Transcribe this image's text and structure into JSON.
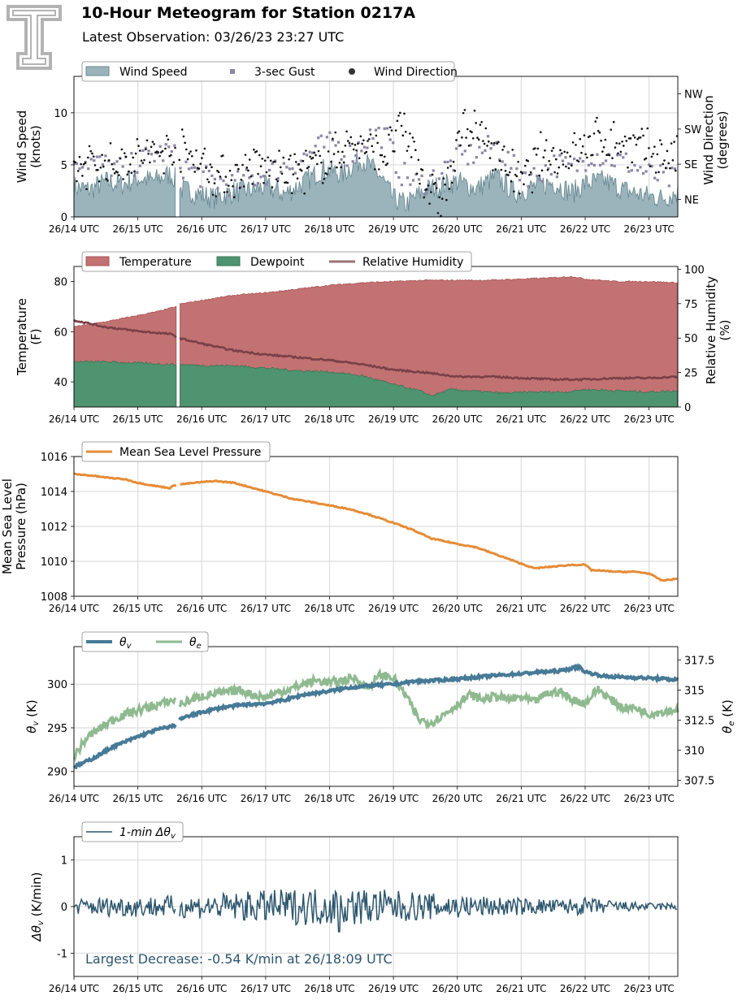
{
  "title": "10-Hour Meteogram for Station 0217A",
  "subtitle": "Latest Observation: 03/26/23 23:27 UTC",
  "colors": {
    "wind_speed": "#9bb4bc",
    "wind_speed_edge": "#6a8a94",
    "gust": "#8c84a4",
    "wind_dir": "#111111",
    "temperature": "#c27272",
    "dewpoint": "#4f9470",
    "rh": "#7a4048",
    "pressure": "#e58c36",
    "theta_v": "#467a96",
    "theta_e": "#8fba90",
    "dtheta": "#2c566e",
    "grid": "#dddddd",
    "logo": "#b3b3b3"
  },
  "icons": {
    "logo": "double-t-logo-icon"
  },
  "x_ticks": [
    "26/14 UTC",
    "26/15 UTC",
    "26/16 UTC",
    "26/17 UTC",
    "26/18 UTC",
    "26/19 UTC",
    "26/20 UTC",
    "26/21 UTC",
    "26/22 UTC",
    "26/23 UTC"
  ],
  "chart_data": [
    {
      "type": "area",
      "id": "wind",
      "ylabel": "Wind Speed\n(knots)",
      "ylabel2": "Wind Direction\n(degrees)",
      "ylim": [
        0,
        13.5
      ],
      "yticks": [
        0,
        5,
        10
      ],
      "y2lim": [
        0,
        360
      ],
      "y2ticks": [
        {
          "label": "NE",
          "value": 45
        },
        {
          "label": "SE",
          "value": 135
        },
        {
          "label": "SW",
          "value": 225
        },
        {
          "label": "NW",
          "value": 315
        }
      ],
      "xlim": [
        14.0,
        23.45
      ],
      "grid": true,
      "legend": "top-left",
      "gap": [
        15.6,
        15.65
      ],
      "series": [
        {
          "name": "Wind Speed",
          "kind": "area",
          "x": [
            14.0,
            14.25,
            14.5,
            14.75,
            15.0,
            15.25,
            15.5,
            15.6,
            15.65,
            15.9,
            16.2,
            16.5,
            16.8,
            17.0,
            17.3,
            17.6,
            17.9,
            18.2,
            18.5,
            18.8,
            19.0,
            19.2,
            19.5,
            19.8,
            20.0,
            20.3,
            20.6,
            20.9,
            21.2,
            21.5,
            21.8,
            22.0,
            22.3,
            22.6,
            22.9,
            23.2,
            23.45
          ],
          "values": [
            2.9,
            2.6,
            3.4,
            3.1,
            3.7,
            3.5,
            4.1,
            3.6,
            2.7,
            2.3,
            1.8,
            2.4,
            2.6,
            2.9,
            2.2,
            3.3,
            4.6,
            4.1,
            5.6,
            3.9,
            1.7,
            1.2,
            2.6,
            3.1,
            3.4,
            2.7,
            3.9,
            2.3,
            2.9,
            3.3,
            2.3,
            3.2,
            3.5,
            2.6,
            2.1,
            1.8,
            2.3
          ]
        },
        {
          "name": "3-sec Gust",
          "kind": "squares",
          "x": [
            14.05,
            14.4,
            14.8,
            15.2,
            15.5,
            15.7,
            16.1,
            16.5,
            16.9,
            17.2,
            17.5,
            17.8,
            18.1,
            18.3,
            18.7,
            18.9,
            19.1,
            19.4,
            19.7,
            20.0,
            20.3,
            20.6,
            20.9,
            21.2,
            21.5,
            21.8,
            22.1,
            22.4,
            22.7,
            23.0,
            23.3
          ],
          "values": [
            5.6,
            5.1,
            4.6,
            5.9,
            6.3,
            4.9,
            3.6,
            3.1,
            3.9,
            4.7,
            5.3,
            6.6,
            7.1,
            5.9,
            8.1,
            7.6,
            4.3,
            3.1,
            4.1,
            5.6,
            6.1,
            6.9,
            4.6,
            3.9,
            5.1,
            4.6,
            6.1,
            5.6,
            5.1,
            4.1,
            3.6
          ]
        },
        {
          "name": "Wind Direction",
          "kind": "dots",
          "x": [
            14.0,
            14.3,
            14.6,
            14.9,
            15.2,
            15.5,
            15.75,
            16.0,
            16.3,
            16.6,
            16.9,
            17.1,
            17.4,
            17.7,
            18.0,
            18.3,
            18.6,
            18.9,
            19.1,
            19.3,
            19.5,
            19.7,
            19.9,
            20.1,
            20.4,
            20.7,
            21.0,
            21.3,
            21.6,
            21.9,
            22.2,
            22.5,
            22.8,
            23.1,
            23.4
          ],
          "values": [
            120,
            140,
            130,
            150,
            160,
            170,
            165,
            140,
            100,
            110,
            130,
            120,
            115,
            125,
            145,
            190,
            175,
            160,
            230,
            180,
            90,
            40,
            100,
            240,
            200,
            150,
            80,
            160,
            150,
            170,
            200,
            190,
            180,
            160,
            150
          ]
        }
      ]
    },
    {
      "type": "area",
      "id": "thermo",
      "ylabel": "Temperature\n(F)",
      "ylabel2": "Relative Humidity\n(%)",
      "ylim": [
        30,
        86
      ],
      "yticks": [
        40,
        60,
        80
      ],
      "y2lim": [
        0,
        102
      ],
      "y2ticks": [
        0,
        25,
        50,
        75,
        100
      ],
      "xlim": [
        14.0,
        23.45
      ],
      "grid": false,
      "legend": "top-left",
      "gap": [
        15.6,
        15.65
      ],
      "series": [
        {
          "name": "Temperature",
          "kind": "area",
          "x": [
            14.0,
            14.5,
            15.0,
            15.3,
            15.6,
            15.65,
            16.0,
            16.5,
            17.0,
            17.5,
            18.0,
            18.5,
            19.0,
            19.5,
            20.0,
            20.5,
            21.0,
            21.5,
            21.8,
            22.0,
            22.5,
            23.0,
            23.45
          ],
          "values": [
            62,
            64,
            66.5,
            68,
            70,
            71,
            72.5,
            74.5,
            75.5,
            77,
            78.5,
            79.5,
            80,
            80.5,
            80.5,
            80.5,
            81,
            81.5,
            82,
            81,
            80,
            80,
            79.5
          ]
        },
        {
          "name": "Dewpoint",
          "kind": "area",
          "x": [
            14.0,
            14.5,
            15.0,
            15.5,
            15.6,
            15.65,
            16.0,
            16.5,
            17.0,
            17.5,
            18.0,
            18.5,
            19.0,
            19.4,
            19.6,
            19.9,
            20.2,
            20.7,
            21.2,
            21.7,
            22.0,
            22.5,
            23.0,
            23.45
          ],
          "values": [
            48,
            48,
            47.5,
            47,
            47,
            47,
            46.5,
            46.5,
            45.5,
            44.5,
            44,
            42.5,
            39,
            36.5,
            34.5,
            37,
            36.5,
            35.5,
            36,
            36,
            37,
            36.5,
            36,
            36.5
          ]
        },
        {
          "name": "Relative Humidity",
          "kind": "line",
          "x": [
            14.0,
            14.5,
            15.0,
            15.5,
            15.6,
            15.65,
            16.0,
            16.5,
            17.0,
            17.5,
            18.0,
            18.5,
            19.0,
            19.5,
            20.0,
            20.5,
            21.0,
            21.5,
            22.0,
            22.5,
            23.0,
            23.45
          ],
          "values": [
            63,
            58,
            55,
            53,
            51,
            50,
            46,
            41,
            38,
            36,
            34,
            31,
            27,
            25,
            22,
            22,
            21,
            20,
            20,
            21,
            21,
            22
          ]
        }
      ]
    },
    {
      "type": "line",
      "id": "pressure",
      "ylabel": "Mean Sea Level\nPressure (hPa)",
      "ylim": [
        1008,
        1016
      ],
      "yticks": [
        1008,
        1010,
        1012,
        1014,
        1016
      ],
      "xlim": [
        14.0,
        23.45
      ],
      "grid": true,
      "legend": "top-left",
      "gap": [
        15.6,
        15.65
      ],
      "series": [
        {
          "name": "Mean Sea Level Pressure",
          "x": [
            14.0,
            14.3,
            14.5,
            14.8,
            15.0,
            15.3,
            15.5,
            15.6,
            15.65,
            15.9,
            16.2,
            16.5,
            16.8,
            17.1,
            17.4,
            17.7,
            18.0,
            18.3,
            18.6,
            19.0,
            19.3,
            19.6,
            20.0,
            20.3,
            20.6,
            20.9,
            21.2,
            21.5,
            21.8,
            22.0,
            22.1,
            22.5,
            22.8,
            23.0,
            23.2,
            23.45
          ],
          "values": [
            1015.0,
            1014.9,
            1014.8,
            1014.7,
            1014.5,
            1014.3,
            1014.2,
            1014.4,
            1014.4,
            1014.5,
            1014.6,
            1014.5,
            1014.2,
            1013.9,
            1013.6,
            1013.4,
            1013.2,
            1013.0,
            1012.7,
            1012.2,
            1011.8,
            1011.3,
            1011.0,
            1010.8,
            1010.4,
            1010.0,
            1009.6,
            1009.7,
            1009.8,
            1009.8,
            1009.5,
            1009.4,
            1009.4,
            1009.3,
            1008.9,
            1009.0
          ]
        }
      ]
    },
    {
      "type": "line",
      "id": "theta",
      "ylabel": "θv (K)",
      "ylabel2": "θe (K)",
      "ylim": [
        288.3,
        304.3
      ],
      "yticks": [
        290,
        295,
        300
      ],
      "y2lim": [
        307.0,
        318.6
      ],
      "y2ticks": [
        307.5,
        310.0,
        312.5,
        315.0,
        317.5
      ],
      "xlim": [
        14.0,
        23.45
      ],
      "grid": true,
      "legend": "top-left",
      "gap": [
        15.6,
        15.65
      ],
      "series": [
        {
          "name": "θv",
          "axis": "left",
          "x": [
            14.0,
            14.3,
            14.6,
            15.0,
            15.3,
            15.6,
            15.65,
            16.0,
            16.3,
            16.6,
            17.0,
            17.3,
            17.6,
            18.0,
            18.3,
            18.6,
            19.0,
            19.3,
            19.6,
            20.0,
            20.3,
            20.6,
            21.0,
            21.3,
            21.6,
            21.9,
            22.0,
            22.3,
            22.6,
            23.0,
            23.45
          ],
          "values": [
            290.5,
            291.5,
            292.8,
            294.0,
            294.8,
            295.3,
            296.0,
            296.8,
            297.3,
            297.6,
            297.8,
            298.2,
            298.8,
            299.2,
            299.6,
            299.8,
            300.0,
            300.3,
            300.4,
            300.6,
            300.8,
            301.0,
            301.2,
            301.4,
            301.5,
            302.0,
            301.4,
            300.9,
            300.8,
            300.7,
            300.5
          ]
        },
        {
          "name": "θe",
          "axis": "right",
          "x": [
            14.0,
            14.2,
            14.4,
            14.6,
            14.8,
            15.0,
            15.2,
            15.4,
            15.6,
            15.65,
            15.8,
            16.0,
            16.2,
            16.4,
            16.6,
            16.8,
            17.0,
            17.2,
            17.4,
            17.6,
            17.8,
            18.0,
            18.2,
            18.4,
            18.6,
            18.8,
            19.0,
            19.2,
            19.4,
            19.6,
            19.8,
            20.0,
            20.2,
            20.4,
            20.6,
            20.8,
            21.0,
            21.2,
            21.4,
            21.6,
            21.8,
            22.0,
            22.2,
            22.4,
            22.6,
            22.8,
            23.0,
            23.2,
            23.45
          ],
          "values": [
            309.5,
            311.0,
            311.8,
            312.5,
            313.0,
            313.3,
            313.6,
            313.9,
            314.2,
            313.8,
            314.1,
            314.5,
            314.7,
            314.8,
            315.0,
            314.6,
            314.4,
            314.8,
            315.1,
            315.5,
            315.8,
            315.6,
            315.8,
            316.0,
            315.2,
            316.3,
            316.0,
            314.5,
            312.5,
            312.3,
            313.0,
            313.8,
            314.6,
            314.2,
            314.5,
            314.2,
            314.4,
            314.0,
            314.7,
            314.9,
            314.2,
            313.9,
            315.1,
            314.2,
            313.5,
            313.5,
            313.0,
            313.2,
            313.4
          ]
        }
      ]
    },
    {
      "type": "line",
      "id": "dtheta",
      "ylabel": "Δθv (K/min)",
      "ylim": [
        -1.5,
        1.5
      ],
      "yticks": [
        -1,
        0,
        1
      ],
      "xlim": [
        14.0,
        23.45
      ],
      "grid": true,
      "legend": "top-left",
      "gap": [
        15.6,
        15.65
      ],
      "amplitude_schedule": {
        "x": [
          14.0,
          14.5,
          15.0,
          15.6,
          15.65,
          16.2,
          17.0,
          17.6,
          18.2,
          18.9,
          19.4,
          20.2,
          20.9,
          21.5,
          22.0,
          22.6,
          23.0,
          23.45
        ],
        "values": [
          0.1,
          0.13,
          0.14,
          0.15,
          0.15,
          0.17,
          0.22,
          0.25,
          0.26,
          0.23,
          0.19,
          0.15,
          0.12,
          0.1,
          0.12,
          0.07,
          0.05,
          0.05
        ]
      },
      "series": [
        {
          "name": "1-min Δθv",
          "x": [],
          "values": []
        }
      ],
      "annotation": "Largest Decrease: -0.54 K/min at 26/18:09 UTC"
    }
  ],
  "legends": {
    "wind": [
      "Wind Speed",
      "3-sec Gust",
      "Wind Direction"
    ],
    "thermo": [
      "Temperature",
      "Dewpoint",
      "Relative Humidity"
    ],
    "pressure": [
      "Mean Sea Level Pressure"
    ],
    "theta": [
      "θv",
      "θe"
    ],
    "dtheta": [
      "1-min Δθv"
    ]
  }
}
